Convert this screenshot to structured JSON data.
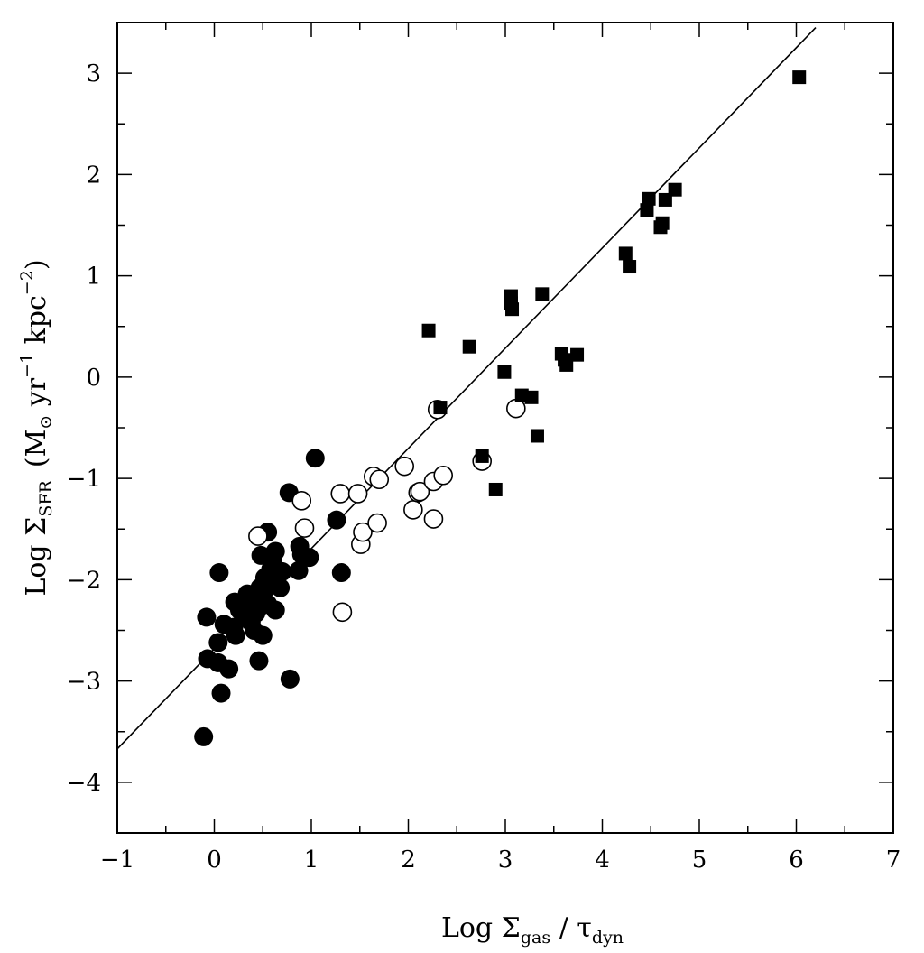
{
  "chart_data": {
    "type": "scatter",
    "title": "",
    "xlabel": {
      "prefix": "Log Σ",
      "sub1": "gas",
      "mid": " / τ",
      "sub2": "dyn"
    },
    "ylabel": {
      "prefix": "Log Σ",
      "sub1": "SFR",
      "units": "(M",
      "sun": "⊙",
      "units2": " yr",
      "exp1": "−1",
      "units3": " kpc",
      "exp2": "−2",
      "close": ")"
    },
    "xlim": [
      -1,
      7
    ],
    "ylim": [
      -4.5,
      3.5
    ],
    "xticks": [
      -1,
      0,
      1,
      2,
      3,
      4,
      5,
      6,
      7
    ],
    "xtick_labels": [
      "−1",
      "0",
      "1",
      "2",
      "3",
      "4",
      "5",
      "6",
      "7"
    ],
    "yticks": [
      -4,
      -3,
      -2,
      -1,
      0,
      1,
      2,
      3
    ],
    "ytick_labels": [
      "−4",
      "−3",
      "−2",
      "−1",
      "0",
      "1",
      "2",
      "3"
    ],
    "grid": false,
    "fit_line": {
      "x": [
        -1,
        6.2
      ],
      "y": [
        -3.67,
        3.45
      ]
    },
    "series": [
      {
        "marker": "filled-circle",
        "points": [
          [
            -0.11,
            -3.55
          ],
          [
            0.07,
            -3.12
          ],
          [
            -0.07,
            -2.78
          ],
          [
            0.04,
            -2.82
          ],
          [
            0.15,
            -2.88
          ],
          [
            -0.08,
            -2.37
          ],
          [
            0.05,
            -1.93
          ],
          [
            0.04,
            -2.62
          ],
          [
            0.1,
            -2.44
          ],
          [
            0.2,
            -2.47
          ],
          [
            0.22,
            -2.55
          ],
          [
            0.26,
            -2.3
          ],
          [
            0.21,
            -2.22
          ],
          [
            0.3,
            -2.36
          ],
          [
            0.34,
            -2.14
          ],
          [
            0.38,
            -2.42
          ],
          [
            0.43,
            -2.33
          ],
          [
            0.46,
            -2.22
          ],
          [
            0.47,
            -2.08
          ],
          [
            0.48,
            -2.26
          ],
          [
            0.5,
            -2.55
          ],
          [
            0.53,
            -2.09
          ],
          [
            0.55,
            -2.24
          ],
          [
            0.57,
            -2.04
          ],
          [
            0.58,
            -1.9
          ],
          [
            0.55,
            -1.53
          ],
          [
            0.48,
            -1.76
          ],
          [
            0.6,
            -1.8
          ],
          [
            0.63,
            -1.72
          ],
          [
            0.63,
            -2.3
          ],
          [
            0.68,
            -2.08
          ],
          [
            0.7,
            -1.92
          ],
          [
            0.46,
            -2.8
          ],
          [
            0.78,
            -2.98
          ],
          [
            0.77,
            -1.14
          ],
          [
            0.87,
            -1.91
          ],
          [
            0.9,
            -1.75
          ],
          [
            0.88,
            -1.67
          ],
          [
            0.98,
            -1.78
          ],
          [
            1.04,
            -0.8
          ],
          [
            1.26,
            -1.41
          ],
          [
            1.31,
            -1.93
          ],
          [
            0.35,
            -2.2
          ],
          [
            0.41,
            -2.5
          ],
          [
            0.52,
            -1.98
          ]
        ]
      },
      {
        "marker": "open-circle",
        "points": [
          [
            0.45,
            -1.57
          ],
          [
            0.9,
            -1.22
          ],
          [
            0.93,
            -1.49
          ],
          [
            1.3,
            -1.15
          ],
          [
            1.32,
            -2.32
          ],
          [
            1.48,
            -1.15
          ],
          [
            1.51,
            -1.65
          ],
          [
            1.53,
            -1.53
          ],
          [
            1.64,
            -0.98
          ],
          [
            1.68,
            -1.44
          ],
          [
            1.7,
            -1.01
          ],
          [
            1.96,
            -0.88
          ],
          [
            2.05,
            -1.31
          ],
          [
            2.1,
            -1.14
          ],
          [
            2.12,
            -1.13
          ],
          [
            2.26,
            -1.03
          ],
          [
            2.26,
            -1.4
          ],
          [
            2.3,
            -0.32
          ],
          [
            2.36,
            -0.97
          ],
          [
            2.76,
            -0.83
          ],
          [
            3.11,
            -0.31
          ]
        ]
      },
      {
        "marker": "filled-square",
        "points": [
          [
            2.21,
            0.46
          ],
          [
            2.33,
            -0.3
          ],
          [
            2.63,
            0.3
          ],
          [
            2.76,
            -0.78
          ],
          [
            2.9,
            -1.11
          ],
          [
            2.99,
            0.05
          ],
          [
            3.06,
            0.8
          ],
          [
            3.06,
            0.73
          ],
          [
            3.07,
            0.67
          ],
          [
            3.17,
            -0.18
          ],
          [
            3.27,
            -0.2
          ],
          [
            3.33,
            -0.58
          ],
          [
            3.38,
            0.82
          ],
          [
            3.58,
            0.23
          ],
          [
            3.61,
            0.17
          ],
          [
            3.63,
            0.12
          ],
          [
            3.74,
            0.22
          ],
          [
            4.24,
            1.22
          ],
          [
            4.28,
            1.09
          ],
          [
            4.46,
            1.65
          ],
          [
            4.48,
            1.76
          ],
          [
            4.6,
            1.48
          ],
          [
            4.62,
            1.52
          ],
          [
            4.65,
            1.75
          ],
          [
            4.75,
            1.85
          ],
          [
            6.03,
            2.96
          ]
        ]
      }
    ]
  }
}
